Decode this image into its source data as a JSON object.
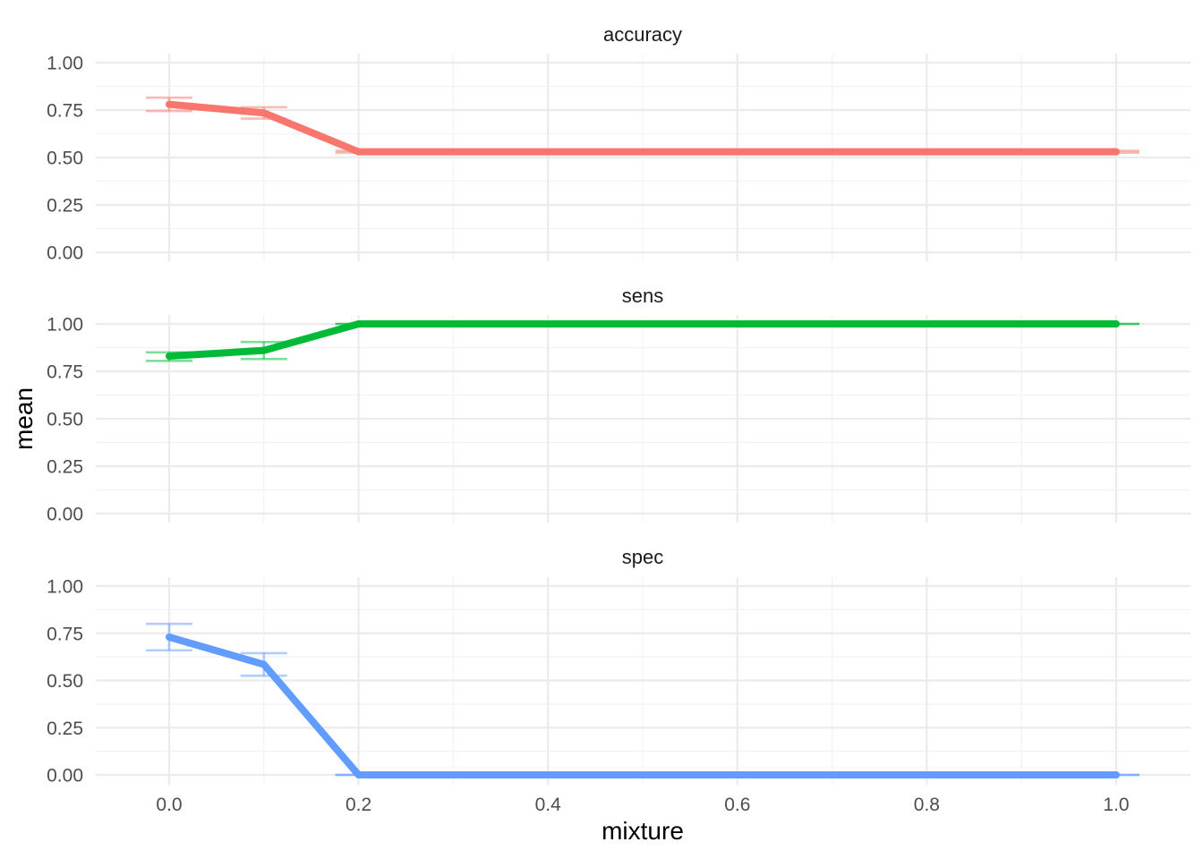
{
  "chart_data": {
    "type": "line",
    "xlabel": "mixture",
    "ylabel": "mean",
    "xlim": [
      -0.04,
      1.04
    ],
    "ylim": [
      0,
      1
    ],
    "x_ticks": [
      "0.0",
      "0.2",
      "0.4",
      "0.6",
      "0.8",
      "1.0"
    ],
    "y_ticks": [
      "0.00",
      "0.25",
      "0.50",
      "0.75",
      "1.00"
    ],
    "grid": true,
    "legend": "none",
    "error_bars": true,
    "x": [
      0.0,
      0.1,
      0.2,
      1.0
    ],
    "panels": [
      {
        "name": "accuracy",
        "color": "#F8766D",
        "mean": [
          0.78,
          0.735,
          0.53,
          0.53
        ],
        "lower": [
          0.745,
          0.705,
          0.525,
          0.525
        ],
        "upper": [
          0.815,
          0.765,
          0.535,
          0.535
        ]
      },
      {
        "name": "sens",
        "color": "#00BA38",
        "mean": [
          0.83,
          0.86,
          1.0,
          1.0
        ],
        "lower": [
          0.805,
          0.815,
          1.0,
          1.0
        ],
        "upper": [
          0.85,
          0.905,
          1.0,
          1.0
        ]
      },
      {
        "name": "spec",
        "color": "#619CFF",
        "mean": [
          0.73,
          0.585,
          0.0,
          0.0
        ],
        "lower": [
          0.66,
          0.525,
          0.0,
          0.0
        ],
        "upper": [
          0.8,
          0.645,
          0.0,
          0.0
        ]
      }
    ]
  }
}
